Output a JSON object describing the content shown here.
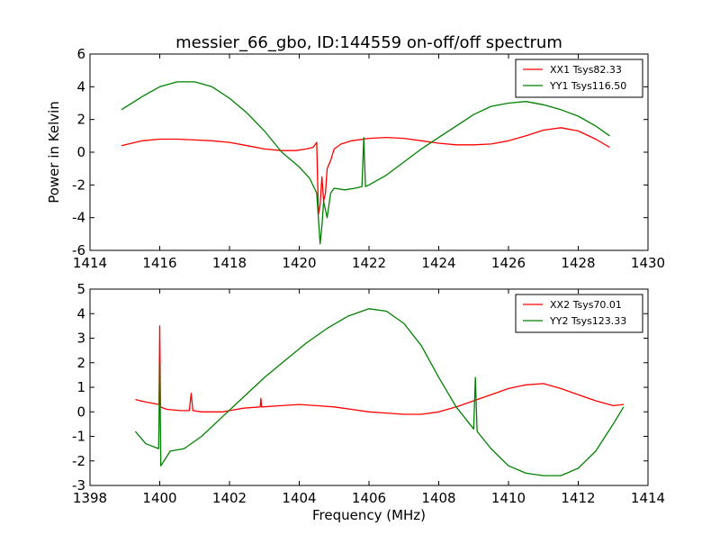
{
  "chart_data": [
    {
      "type": "line",
      "title": "messier_66_gbo, ID:144559 on-off/off spectrum",
      "xlabel": "",
      "ylabel": "Power in Kelvin",
      "xlim": [
        1414,
        1430
      ],
      "ylim": [
        -6,
        6
      ],
      "xticks": [
        1414,
        1416,
        1418,
        1420,
        1422,
        1424,
        1426,
        1428,
        1430
      ],
      "yticks": [
        -6,
        -4,
        -2,
        0,
        2,
        4,
        6
      ],
      "legend_position": "top-right",
      "series": [
        {
          "name": "XX1 Tsys82.33",
          "color": "#ff0000",
          "x": [
            1414.9,
            1415.5,
            1416.0,
            1416.5,
            1417.0,
            1417.5,
            1418.0,
            1418.5,
            1419.0,
            1419.5,
            1419.9,
            1420.2,
            1420.4,
            1420.5,
            1420.55,
            1420.6,
            1420.65,
            1420.7,
            1420.75,
            1420.8,
            1420.9,
            1421.0,
            1421.2,
            1421.5,
            1422.0,
            1422.5,
            1423.0,
            1423.5,
            1424.0,
            1424.5,
            1425.0,
            1425.5,
            1426.0,
            1426.5,
            1427.0,
            1427.5,
            1428.0,
            1428.5,
            1428.9
          ],
          "values": [
            0.4,
            0.7,
            0.8,
            0.8,
            0.75,
            0.7,
            0.6,
            0.4,
            0.2,
            0.1,
            0.1,
            0.2,
            0.3,
            0.6,
            -3.8,
            -3.2,
            -1.5,
            -3.0,
            -2.5,
            -1.0,
            -0.5,
            0.2,
            0.5,
            0.7,
            0.85,
            0.9,
            0.85,
            0.7,
            0.55,
            0.45,
            0.45,
            0.5,
            0.7,
            1.0,
            1.35,
            1.5,
            1.3,
            0.8,
            0.3
          ]
        },
        {
          "name": "YY1 Tsys116.50",
          "color": "#008000",
          "x": [
            1414.9,
            1415.5,
            1416.0,
            1416.5,
            1417.0,
            1417.5,
            1418.0,
            1418.5,
            1419.0,
            1419.5,
            1420.0,
            1420.3,
            1420.5,
            1420.6,
            1420.65,
            1420.7,
            1420.8,
            1420.9,
            1421.0,
            1421.3,
            1421.6,
            1421.8,
            1421.85,
            1421.9,
            1422.0,
            1422.5,
            1423.0,
            1423.5,
            1424.0,
            1424.5,
            1425.0,
            1425.5,
            1426.0,
            1426.5,
            1427.0,
            1427.5,
            1428.0,
            1428.5,
            1428.9
          ],
          "values": [
            2.6,
            3.4,
            4.0,
            4.3,
            4.3,
            4.0,
            3.3,
            2.4,
            1.3,
            0.0,
            -0.9,
            -1.6,
            -2.5,
            -5.6,
            -4.5,
            -3.0,
            -4.0,
            -2.5,
            -2.2,
            -2.3,
            -2.2,
            -2.1,
            0.9,
            -2.1,
            -2.0,
            -1.4,
            -0.6,
            0.2,
            0.9,
            1.6,
            2.3,
            2.8,
            3.0,
            3.1,
            2.9,
            2.6,
            2.2,
            1.6,
            1.0
          ]
        }
      ]
    },
    {
      "type": "line",
      "title": "",
      "xlabel": "Frequency (MHz)",
      "ylabel": "",
      "xlim": [
        1398,
        1414
      ],
      "ylim": [
        -3,
        5
      ],
      "xticks": [
        1398,
        1400,
        1402,
        1404,
        1406,
        1408,
        1410,
        1412,
        1414
      ],
      "yticks": [
        -3,
        -2,
        -1,
        0,
        1,
        2,
        3,
        4,
        5
      ],
      "legend_position": "top-right",
      "series": [
        {
          "name": "XX2 Tsys70.01",
          "color": "#ff0000",
          "x": [
            1399.3,
            1399.6,
            1399.98,
            1400.0,
            1400.02,
            1400.2,
            1400.6,
            1400.85,
            1400.9,
            1400.95,
            1401.2,
            1401.8,
            1402.4,
            1402.88,
            1402.9,
            1402.92,
            1403.5,
            1404.0,
            1404.5,
            1405.0,
            1405.5,
            1406.0,
            1406.5,
            1407.0,
            1407.5,
            1408.0,
            1408.5,
            1409.0,
            1409.5,
            1410.0,
            1410.5,
            1411.0,
            1411.5,
            1412.0,
            1412.5,
            1413.0,
            1413.3
          ],
          "values": [
            0.5,
            0.4,
            0.3,
            3.5,
            0.2,
            0.1,
            0.05,
            0.05,
            0.75,
            0.05,
            0.0,
            0.0,
            0.15,
            0.2,
            0.55,
            0.2,
            0.25,
            0.3,
            0.25,
            0.2,
            0.1,
            0.0,
            -0.05,
            -0.1,
            -0.1,
            0.0,
            0.2,
            0.45,
            0.7,
            0.95,
            1.1,
            1.15,
            0.95,
            0.7,
            0.45,
            0.25,
            0.3
          ]
        },
        {
          "name": "YY2 Tsys123.33",
          "color": "#008000",
          "x": [
            1399.3,
            1399.6,
            1399.97,
            1400.0,
            1400.03,
            1400.3,
            1400.7,
            1401.2,
            1401.8,
            1402.4,
            1403.0,
            1403.6,
            1404.2,
            1404.8,
            1405.4,
            1406.0,
            1406.5,
            1407.0,
            1407.5,
            1408.0,
            1408.5,
            1409.0,
            1409.05,
            1409.1,
            1409.5,
            1410.0,
            1410.5,
            1411.0,
            1411.5,
            1412.0,
            1412.5,
            1413.0,
            1413.3
          ],
          "values": [
            -0.8,
            -1.3,
            -1.5,
            2.0,
            -2.2,
            -1.6,
            -1.5,
            -1.0,
            -0.2,
            0.6,
            1.4,
            2.1,
            2.8,
            3.4,
            3.9,
            4.2,
            4.1,
            3.6,
            2.7,
            1.4,
            0.2,
            -0.7,
            1.4,
            -0.8,
            -1.5,
            -2.2,
            -2.5,
            -2.6,
            -2.6,
            -2.3,
            -1.6,
            -0.5,
            0.2
          ]
        }
      ]
    }
  ]
}
